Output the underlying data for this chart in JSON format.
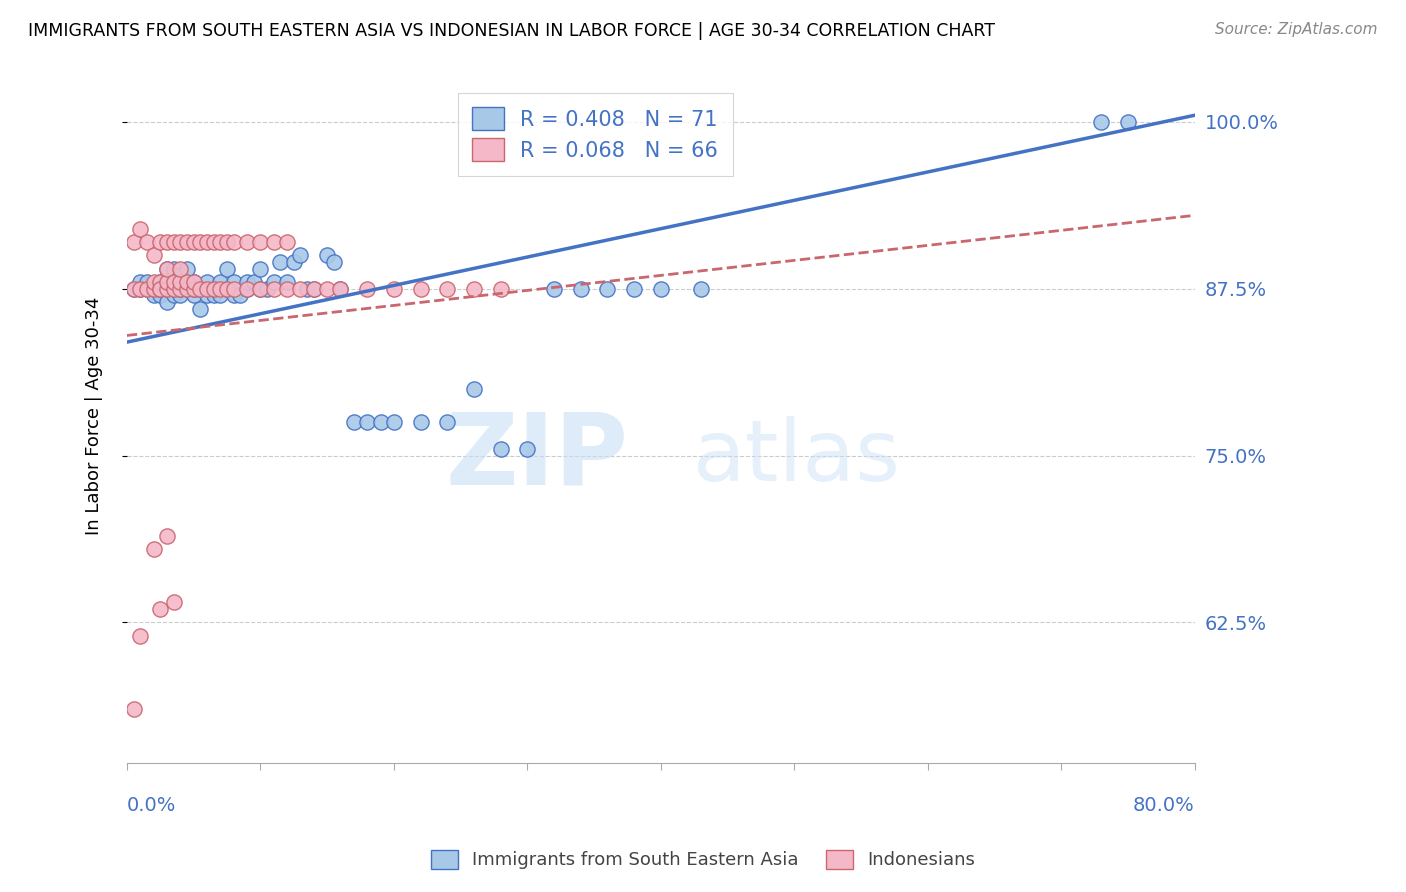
{
  "title": "IMMIGRANTS FROM SOUTH EASTERN ASIA VS INDONESIAN IN LABOR FORCE | AGE 30-34 CORRELATION CHART",
  "source": "Source: ZipAtlas.com",
  "ylabel": "In Labor Force | Age 30-34",
  "yticks": [
    0.625,
    0.75,
    0.875,
    1.0
  ],
  "ytick_labels": [
    "62.5%",
    "75.0%",
    "87.5%",
    "100.0%"
  ],
  "xlim": [
    0.0,
    0.8
  ],
  "ylim": [
    0.52,
    1.04
  ],
  "blue_R": 0.408,
  "blue_N": 71,
  "pink_R": 0.068,
  "pink_N": 66,
  "blue_color": "#a8c8e8",
  "pink_color": "#f4b8c8",
  "trend_blue_color": "#4472c4",
  "trend_pink_color": "#c9666e",
  "legend_label_blue": "Immigrants from South Eastern Asia",
  "legend_label_pink": "Indonesians",
  "watermark_zip": "ZIP",
  "watermark_atlas": "atlas",
  "blue_trend_x0": 0.0,
  "blue_trend_y0": 0.835,
  "blue_trend_x1": 0.8,
  "blue_trend_y1": 1.005,
  "pink_trend_x0": 0.0,
  "pink_trend_y0": 0.84,
  "pink_trend_x1": 0.8,
  "pink_trend_y1": 0.93,
  "blue_points_x": [
    0.005,
    0.01,
    0.01,
    0.015,
    0.015,
    0.02,
    0.02,
    0.025,
    0.025,
    0.025,
    0.03,
    0.03,
    0.03,
    0.03,
    0.035,
    0.035,
    0.035,
    0.04,
    0.04,
    0.04,
    0.045,
    0.045,
    0.05,
    0.05,
    0.05,
    0.055,
    0.055,
    0.06,
    0.06,
    0.065,
    0.065,
    0.07,
    0.07,
    0.075,
    0.075,
    0.08,
    0.08,
    0.085,
    0.09,
    0.09,
    0.095,
    0.1,
    0.1,
    0.105,
    0.11,
    0.115,
    0.12,
    0.125,
    0.13,
    0.135,
    0.14,
    0.15,
    0.155,
    0.16,
    0.17,
    0.18,
    0.19,
    0.2,
    0.22,
    0.24,
    0.26,
    0.28,
    0.3,
    0.32,
    0.34,
    0.36,
    0.38,
    0.4,
    0.43,
    0.73,
    0.75
  ],
  "blue_points_y": [
    0.875,
    0.875,
    0.88,
    0.875,
    0.88,
    0.87,
    0.875,
    0.87,
    0.875,
    0.88,
    0.865,
    0.875,
    0.88,
    0.89,
    0.87,
    0.875,
    0.89,
    0.87,
    0.875,
    0.885,
    0.875,
    0.89,
    0.87,
    0.875,
    0.88,
    0.86,
    0.875,
    0.87,
    0.88,
    0.87,
    0.875,
    0.87,
    0.88,
    0.875,
    0.89,
    0.87,
    0.88,
    0.87,
    0.875,
    0.88,
    0.88,
    0.875,
    0.89,
    0.875,
    0.88,
    0.895,
    0.88,
    0.895,
    0.9,
    0.875,
    0.875,
    0.9,
    0.895,
    0.875,
    0.775,
    0.775,
    0.775,
    0.775,
    0.775,
    0.775,
    0.8,
    0.755,
    0.755,
    0.875,
    0.875,
    0.875,
    0.875,
    0.875,
    0.875,
    1.0,
    1.0
  ],
  "pink_points_x": [
    0.005,
    0.01,
    0.015,
    0.02,
    0.02,
    0.025,
    0.025,
    0.025,
    0.03,
    0.03,
    0.03,
    0.035,
    0.035,
    0.04,
    0.04,
    0.04,
    0.045,
    0.045,
    0.05,
    0.05,
    0.055,
    0.06,
    0.065,
    0.07,
    0.075,
    0.08,
    0.09,
    0.1,
    0.11,
    0.12,
    0.13,
    0.14,
    0.15,
    0.16,
    0.18,
    0.2,
    0.22,
    0.24,
    0.26,
    0.28,
    0.005,
    0.01,
    0.015,
    0.02,
    0.025,
    0.03,
    0.035,
    0.04,
    0.045,
    0.05,
    0.055,
    0.06,
    0.065,
    0.07,
    0.075,
    0.08,
    0.09,
    0.1,
    0.11,
    0.12,
    0.005,
    0.01,
    0.02,
    0.025,
    0.03,
    0.035
  ],
  "pink_points_y": [
    0.875,
    0.875,
    0.875,
    0.875,
    0.88,
    0.875,
    0.88,
    0.875,
    0.875,
    0.88,
    0.89,
    0.875,
    0.88,
    0.875,
    0.88,
    0.89,
    0.875,
    0.88,
    0.875,
    0.88,
    0.875,
    0.875,
    0.875,
    0.875,
    0.875,
    0.875,
    0.875,
    0.875,
    0.875,
    0.875,
    0.875,
    0.875,
    0.875,
    0.875,
    0.875,
    0.875,
    0.875,
    0.875,
    0.875,
    0.875,
    0.91,
    0.92,
    0.91,
    0.9,
    0.91,
    0.91,
    0.91,
    0.91,
    0.91,
    0.91,
    0.91,
    0.91,
    0.91,
    0.91,
    0.91,
    0.91,
    0.91,
    0.91,
    0.91,
    0.91,
    0.56,
    0.615,
    0.68,
    0.635,
    0.69,
    0.64
  ]
}
